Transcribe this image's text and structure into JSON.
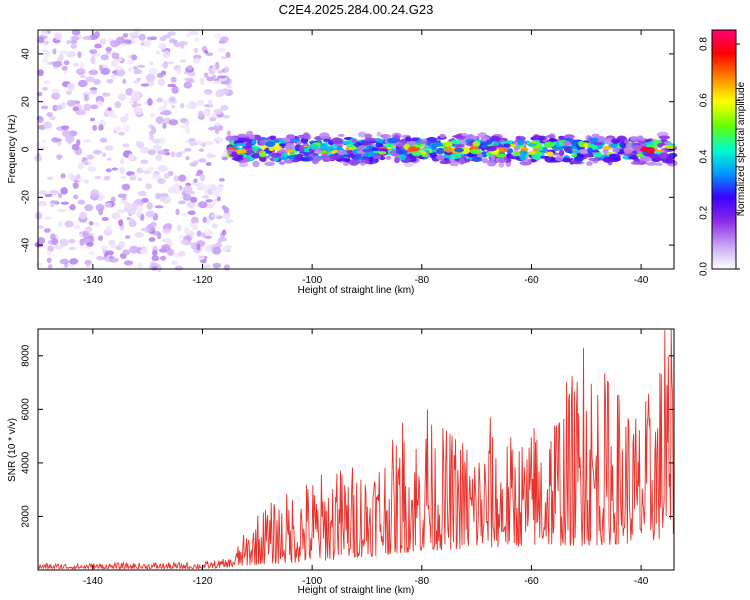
{
  "title": "C2E4.2025.284.00.24.G23",
  "chart_data": [
    {
      "type": "heatmap",
      "name": "spectrogram",
      "xlabel": "Height of straight line (km)",
      "ylabel": "Frequency (Hz)",
      "xlim": [
        -150,
        -34
      ],
      "ylim": [
        -50,
        50
      ],
      "xticks": [
        -140,
        -120,
        -100,
        -80,
        -60,
        -40
      ],
      "yticks": [
        -40,
        -20,
        0,
        20,
        40
      ],
      "colorbar": {
        "label": "Normalized spectral amplitude",
        "range": [
          0.0,
          0.85
        ],
        "ticks": [
          0.0,
          0.2,
          0.4,
          0.6,
          0.8
        ],
        "colormap": [
          "#ffffff",
          "#c8a2f5",
          "#8b2be8",
          "#3a00ff",
          "#0099ff",
          "#00ffcc",
          "#66ff00",
          "#ffff00",
          "#ff8800",
          "#ff0000",
          "#ff0077"
        ]
      },
      "regions": [
        {
          "x_range": [
            -150,
            -115
          ],
          "freq_range": [
            -50,
            50
          ],
          "description": "noise",
          "typical_amplitude": [
            0.02,
            0.12
          ]
        },
        {
          "x_range": [
            -115,
            -34
          ],
          "freq_center": 0,
          "freq_halfwidth": 6,
          "description": "signal band",
          "typical_amplitude": [
            0.1,
            0.85
          ]
        }
      ]
    },
    {
      "type": "line",
      "name": "snr",
      "xlabel": "Height of straight line (km)",
      "ylabel": "SNR (10 * v/v)",
      "xlim": [
        -150,
        -34
      ],
      "ylim": [
        0,
        9000
      ],
      "xticks": [
        -140,
        -120,
        -100,
        -80,
        -60,
        -40
      ],
      "yticks": [
        2000,
        4000,
        6000,
        8000
      ],
      "line_color": "#e8322b",
      "envelope": [
        {
          "x": -150,
          "low": 50,
          "high": 250
        },
        {
          "x": -120,
          "low": 50,
          "high": 300
        },
        {
          "x": -115,
          "low": 100,
          "high": 450
        },
        {
          "x": -110,
          "low": 200,
          "high": 2200
        },
        {
          "x": -100,
          "low": 300,
          "high": 3600
        },
        {
          "x": -90,
          "low": 500,
          "high": 4200
        },
        {
          "x": -80,
          "low": 700,
          "high": 5700
        },
        {
          "x": -70,
          "low": 800,
          "high": 5000
        },
        {
          "x": -60,
          "low": 900,
          "high": 5200
        },
        {
          "x": -50,
          "low": 900,
          "high": 8300
        },
        {
          "x": -40,
          "low": 1000,
          "high": 6000
        },
        {
          "x": -35,
          "low": 1200,
          "high": 9000
        }
      ],
      "peaks": [
        {
          "x": -108.5,
          "y": 2250
        },
        {
          "x": -95.5,
          "y": 3600
        },
        {
          "x": -83.5,
          "y": 5500
        },
        {
          "x": -79,
          "y": 6000
        },
        {
          "x": -67.5,
          "y": 5700
        },
        {
          "x": -59.5,
          "y": 5300
        },
        {
          "x": -50.5,
          "y": 8300
        },
        {
          "x": -46,
          "y": 7000
        },
        {
          "x": -35.7,
          "y": 8950
        }
      ]
    }
  ]
}
